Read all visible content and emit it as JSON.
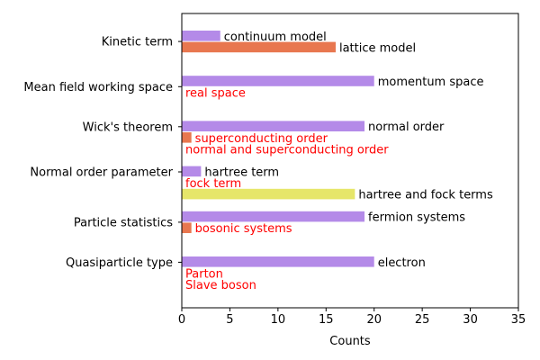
{
  "chart_data": {
    "type": "bar",
    "orientation": "horizontal",
    "xlabel": "Counts",
    "ylabel": "",
    "title": "",
    "xlim": [
      0,
      35
    ],
    "xticks": [
      0,
      5,
      10,
      15,
      20,
      25,
      30,
      35
    ],
    "grid": false,
    "colors": {
      "purple": "#b48ae8",
      "orange": "#e8774f",
      "yellow": "#e6e66a",
      "red_label": "#ff0000",
      "black_label": "#000000"
    },
    "categories": [
      {
        "name": "Kinetic term",
        "bars": [
          {
            "label": "continuum model",
            "value": 4,
            "color": "purple",
            "label_color": "black_label"
          },
          {
            "label": "lattice model",
            "value": 16,
            "color": "orange",
            "label_color": "black_label"
          }
        ]
      },
      {
        "name": "Mean field working space",
        "bars": [
          {
            "label": "momentum space",
            "value": 20,
            "color": "purple",
            "label_color": "black_label"
          },
          {
            "label": "real space",
            "value": 0,
            "color": "orange",
            "label_color": "red_label"
          }
        ]
      },
      {
        "name": "Wick's theorem",
        "bars": [
          {
            "label": "normal order",
            "value": 19,
            "color": "purple",
            "label_color": "black_label"
          },
          {
            "label": "superconducting order",
            "value": 1,
            "color": "orange",
            "label_color": "red_label"
          },
          {
            "label": "normal and superconducting order",
            "value": 0,
            "color": "yellow",
            "label_color": "red_label"
          }
        ]
      },
      {
        "name": "Normal order parameter",
        "bars": [
          {
            "label": "hartree term",
            "value": 2,
            "color": "purple",
            "label_color": "black_label"
          },
          {
            "label": "fock term",
            "value": 0,
            "color": "orange",
            "label_color": "red_label"
          },
          {
            "label": "hartree and fock terms",
            "value": 18,
            "color": "yellow",
            "label_color": "black_label"
          }
        ]
      },
      {
        "name": "Particle statistics",
        "bars": [
          {
            "label": "fermion systems",
            "value": 19,
            "color": "purple",
            "label_color": "black_label"
          },
          {
            "label": "bosonic systems",
            "value": 1,
            "color": "orange",
            "label_color": "red_label"
          }
        ]
      },
      {
        "name": "Quasiparticle type",
        "bars": [
          {
            "label": "electron",
            "value": 20,
            "color": "purple",
            "label_color": "black_label"
          },
          {
            "label": "Parton",
            "value": 0,
            "color": "orange",
            "label_color": "red_label"
          },
          {
            "label": "Slave boson",
            "value": 0,
            "color": "yellow",
            "label_color": "red_label"
          }
        ]
      }
    ]
  }
}
